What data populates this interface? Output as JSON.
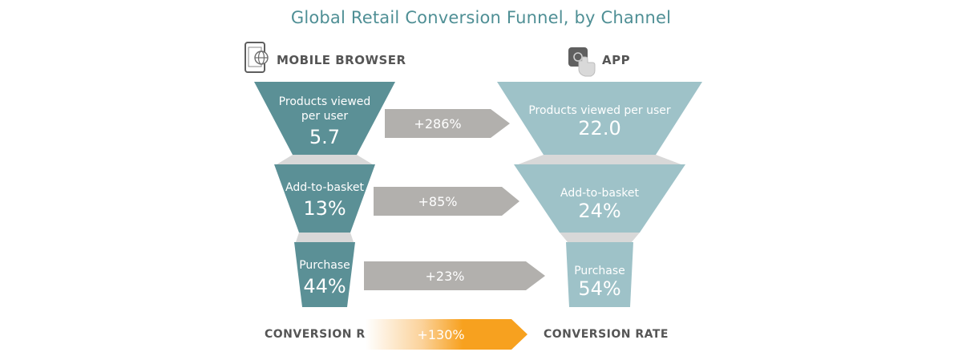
{
  "title": "Global Retail Conversion Funnel, by Channel",
  "channels": {
    "left": {
      "label": "MOBILE BROWSER",
      "icon": "smartphone-icon"
    },
    "right": {
      "label": "APP",
      "icon": "tap-icon"
    }
  },
  "colors": {
    "mobile": "#5b9096",
    "app": "#9ec2c8",
    "neck": "#d8d8d8",
    "arrow": "#b2b0ad",
    "accent": "#f7a11f",
    "title": "#4f8f95"
  },
  "bottom": {
    "left_label": "CONVERSION RATE",
    "right_label": "CONVERSION RATE",
    "uplift": "+130%"
  },
  "chart_data": {
    "type": "funnel",
    "title": "Global Retail Conversion Funnel, by Channel",
    "stages": [
      {
        "label": "Products viewed per user",
        "mobile_browser": 5.7,
        "app": 22.0,
        "uplift": "+286%",
        "mobile_label_lines": [
          "Products viewed",
          "per user"
        ],
        "app_label_lines": [
          "Products viewed per user"
        ],
        "mobile_value_text": "5.7",
        "app_value_text": "22.0"
      },
      {
        "label": "Add-to-basket",
        "mobile_browser": 13,
        "app": 24,
        "unit": "%",
        "uplift": "+85%",
        "mobile_label_lines": [
          "Add-to-basket"
        ],
        "app_label_lines": [
          "Add-to-basket"
        ],
        "mobile_value_text": "13%",
        "app_value_text": "24%"
      },
      {
        "label": "Purchase",
        "mobile_browser": 44,
        "app": 54,
        "unit": "%",
        "uplift": "+23%",
        "mobile_label_lines": [
          "Purchase"
        ],
        "app_label_lines": [
          "Purchase"
        ],
        "mobile_value_text": "44%",
        "app_value_text": "54%"
      }
    ],
    "series": [
      {
        "name": "MOBILE BROWSER",
        "values": [
          5.7,
          13,
          44
        ]
      },
      {
        "name": "APP",
        "values": [
          22.0,
          24,
          54
        ]
      }
    ],
    "overall": {
      "label": "CONVERSION RATE",
      "uplift": "+130%"
    }
  }
}
